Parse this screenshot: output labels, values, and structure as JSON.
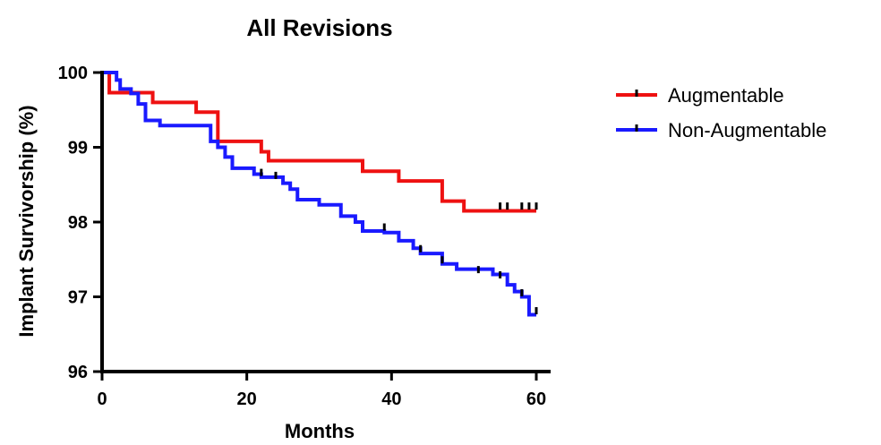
{
  "chart_data": {
    "type": "line",
    "title": "All Revisions",
    "xlabel": "Months",
    "ylabel": "Implant Survivorship (%)",
    "xlim": [
      0,
      60
    ],
    "ylim": [
      96,
      100
    ],
    "x_ticks": [
      0,
      20,
      40,
      60
    ],
    "y_ticks": [
      96,
      97,
      98,
      99,
      100
    ],
    "grid": false,
    "legend_position": "top-right",
    "step": true,
    "series": [
      {
        "name": "Augmentable",
        "color": "#ee1111",
        "points": [
          [
            0,
            100
          ],
          [
            1,
            99.73
          ],
          [
            7,
            99.6
          ],
          [
            13,
            99.47
          ],
          [
            16,
            99.08
          ],
          [
            22,
            98.94
          ],
          [
            23,
            98.82
          ],
          [
            36,
            98.68
          ],
          [
            41,
            98.55
          ],
          [
            47,
            98.28
          ],
          [
            50,
            98.15
          ],
          [
            60,
            98.15
          ]
        ],
        "censored": [
          [
            55,
            98.19
          ],
          [
            56,
            98.19
          ],
          [
            58,
            98.19
          ],
          [
            59,
            98.19
          ],
          [
            60,
            98.19
          ]
        ]
      },
      {
        "name": "Non-Augmentable",
        "color": "#1a1aff",
        "points": [
          [
            0,
            100
          ],
          [
            2,
            99.9
          ],
          [
            2.5,
            99.78
          ],
          [
            4,
            99.72
          ],
          [
            5,
            99.58
          ],
          [
            6,
            99.36
          ],
          [
            8,
            99.29
          ],
          [
            15,
            99.08
          ],
          [
            16,
            99.0
          ],
          [
            17,
            98.87
          ],
          [
            18,
            98.72
          ],
          [
            21,
            98.64
          ],
          [
            22,
            98.6
          ],
          [
            25,
            98.52
          ],
          [
            26,
            98.44
          ],
          [
            27,
            98.3
          ],
          [
            30,
            98.23
          ],
          [
            33,
            98.08
          ],
          [
            35,
            98.0
          ],
          [
            36,
            97.88
          ],
          [
            39,
            97.86
          ],
          [
            41,
            97.75
          ],
          [
            43,
            97.65
          ],
          [
            44,
            97.58
          ],
          [
            47,
            97.44
          ],
          [
            49,
            97.37
          ],
          [
            54,
            97.3
          ],
          [
            56,
            97.16
          ],
          [
            57,
            97.07
          ],
          [
            58,
            97.0
          ],
          [
            59,
            96.76
          ],
          [
            60,
            96.76
          ]
        ],
        "censored": [
          [
            22,
            98.64
          ],
          [
            24,
            98.6
          ],
          [
            39,
            97.91
          ],
          [
            44,
            97.62
          ],
          [
            47,
            97.47
          ],
          [
            52,
            97.34
          ],
          [
            55,
            97.27
          ],
          [
            58,
            97.03
          ],
          [
            60,
            96.79
          ]
        ]
      }
    ]
  }
}
